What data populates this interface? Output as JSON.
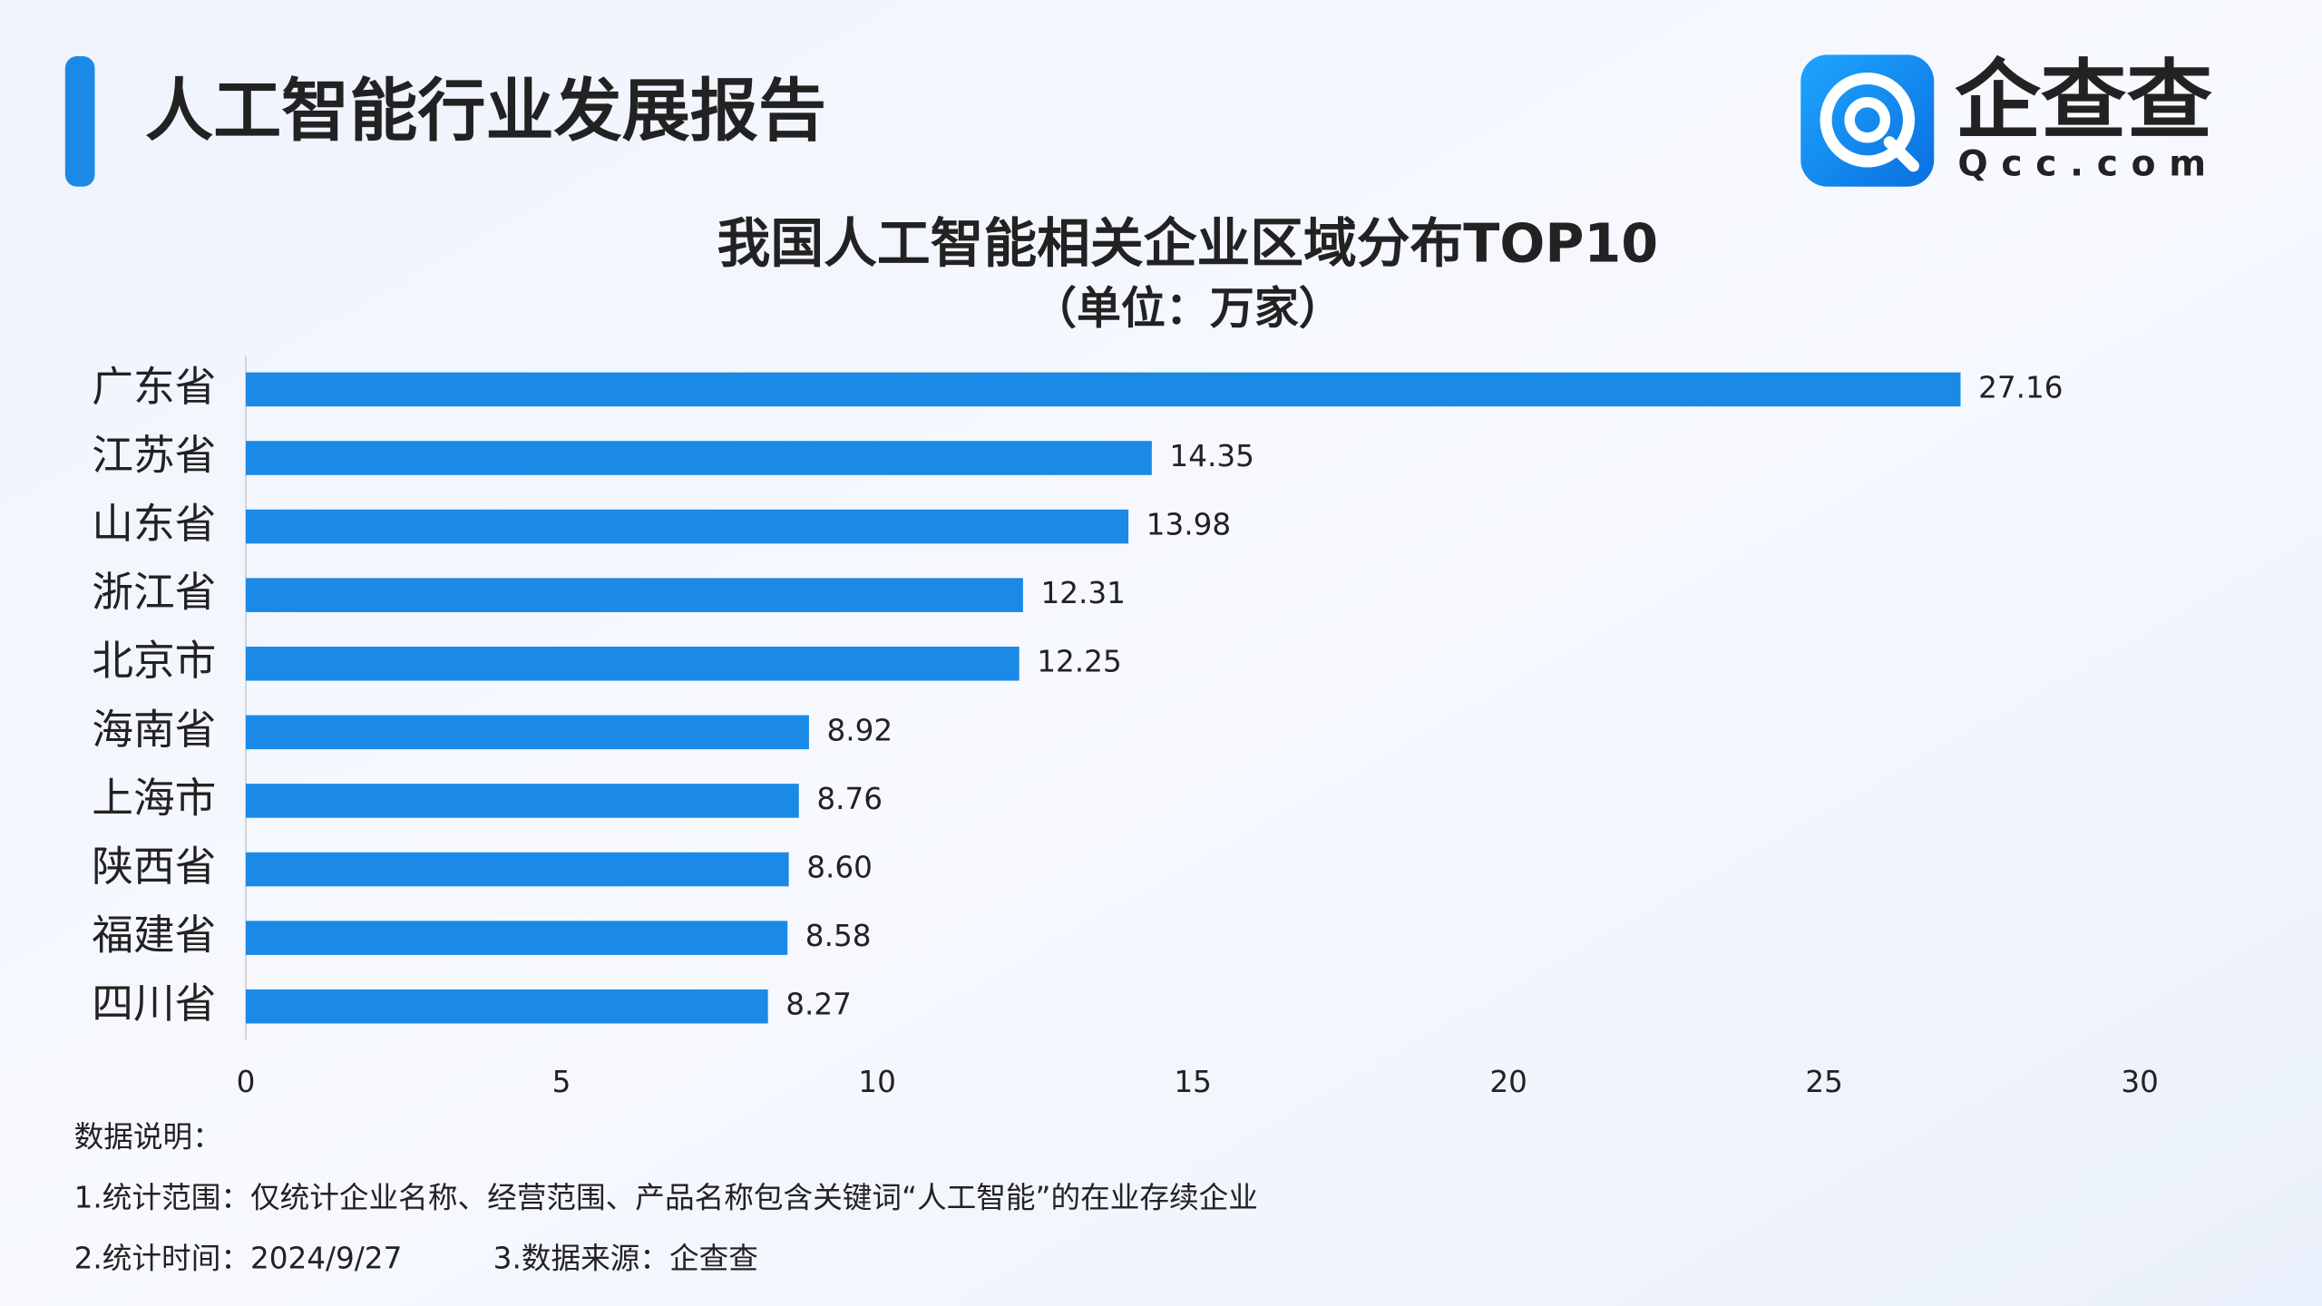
{
  "header": {
    "title": "人工智能行业发展报告",
    "logo_name": "企查查",
    "logo_domain": "Qcc.com"
  },
  "chart_data": {
    "type": "bar",
    "orientation": "horizontal",
    "title": "我国人工智能相关企业区域分布TOP10",
    "subtitle": "（单位：万家）",
    "categories": [
      "广东省",
      "江苏省",
      "山东省",
      "浙江省",
      "北京市",
      "海南省",
      "上海市",
      "陕西省",
      "福建省",
      "四川省"
    ],
    "values": [
      27.16,
      14.35,
      13.98,
      12.31,
      12.25,
      8.92,
      8.76,
      8.6,
      8.58,
      8.27
    ],
    "value_labels": [
      "27.16",
      "14.35",
      "13.98",
      "12.31",
      "12.25",
      "8.92",
      "8.76",
      "8.60",
      "8.58",
      "8.27"
    ],
    "color": "#1a8ae6",
    "xlim": [
      0,
      30
    ],
    "xticks": [
      0,
      5,
      10,
      15,
      20,
      25,
      30
    ]
  },
  "notes": {
    "heading": "数据说明：",
    "line1": "1.统计范围：仅统计企业名称、经营范围、产品名称包含关键词“人工智能”的在业存续企业",
    "time": "2.统计时间：2024/9/27",
    "source": "3.数据来源：企查查"
  }
}
